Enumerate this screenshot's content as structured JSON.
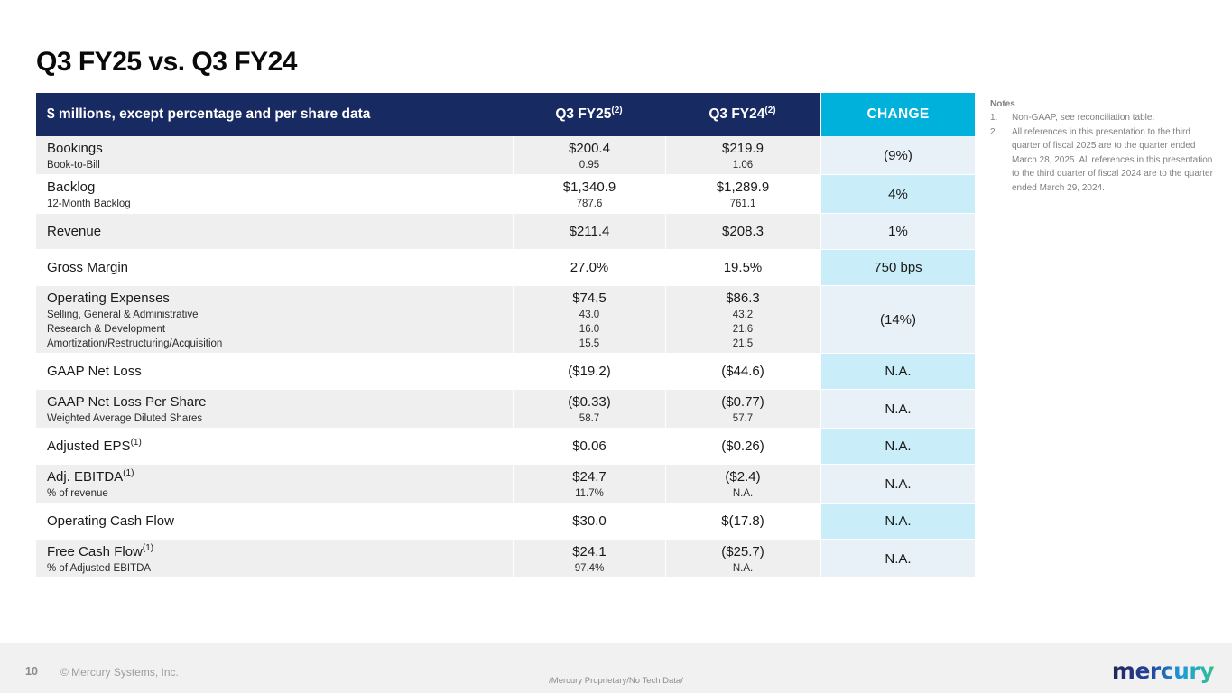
{
  "slide": {
    "title": "Q3 FY25 vs. Q3 FY24"
  },
  "table": {
    "header": {
      "label": "$ millions, except percentage and per share data",
      "col_fy25": "Q3 FY25",
      "col_fy25_sup": "(2)",
      "col_fy24": "Q3 FY24",
      "col_fy24_sup": "(2)",
      "col_change": "CHANGE"
    },
    "rows": [
      {
        "label": "Bookings",
        "sup": "",
        "subs": [
          "Book-to-Bill"
        ],
        "fy25": "$200.4",
        "fy25_subs": [
          "0.95"
        ],
        "fy24": "$219.9",
        "fy24_subs": [
          "1.06"
        ],
        "change": "(9%)",
        "shade": "gray",
        "change_shade": "blue"
      },
      {
        "label": "Backlog",
        "sup": "",
        "subs": [
          "12-Month Backlog"
        ],
        "fy25": "$1,340.9",
        "fy25_subs": [
          "787.6"
        ],
        "fy24": "$1,289.9",
        "fy24_subs": [
          "761.1"
        ],
        "change": "4%",
        "shade": "white",
        "change_shade": "cyan"
      },
      {
        "label": "Revenue",
        "sup": "",
        "subs": [],
        "fy25": "$211.4",
        "fy25_subs": [],
        "fy24": "$208.3",
        "fy24_subs": [],
        "change": "1%",
        "shade": "gray",
        "change_shade": "blue"
      },
      {
        "label": "Gross Margin",
        "sup": "",
        "subs": [],
        "fy25": "27.0%",
        "fy25_subs": [],
        "fy24": "19.5%",
        "fy24_subs": [],
        "change": "750 bps",
        "shade": "white",
        "change_shade": "cyan"
      },
      {
        "label": "Operating Expenses",
        "sup": "",
        "subs": [
          "Selling, General & Administrative",
          "Research & Development",
          "Amortization/Restructuring/Acquisition"
        ],
        "fy25": "$74.5",
        "fy25_subs": [
          "43.0",
          "16.0",
          "15.5"
        ],
        "fy24": "$86.3",
        "fy24_subs": [
          "43.2",
          "21.6",
          "21.5"
        ],
        "change": "(14%)",
        "shade": "gray",
        "change_shade": "blue"
      },
      {
        "label": "GAAP Net Loss",
        "sup": "",
        "subs": [],
        "fy25": "($19.2)",
        "fy25_subs": [],
        "fy24": "($44.6)",
        "fy24_subs": [],
        "change": "N.A.",
        "shade": "white",
        "change_shade": "cyan"
      },
      {
        "label": "GAAP Net Loss Per Share",
        "sup": "",
        "subs": [
          "Weighted Average Diluted Shares"
        ],
        "fy25": "($0.33)",
        "fy25_subs": [
          "58.7"
        ],
        "fy24": "($0.77)",
        "fy24_subs": [
          "57.7"
        ],
        "change": "N.A.",
        "shade": "gray",
        "change_shade": "blue"
      },
      {
        "label": "Adjusted EPS",
        "sup": "(1)",
        "subs": [],
        "fy25": "$0.06",
        "fy25_subs": [],
        "fy24": "($0.26)",
        "fy24_subs": [],
        "change": "N.A.",
        "shade": "white",
        "change_shade": "cyan"
      },
      {
        "label": "Adj. EBITDA",
        "sup": "(1)",
        "subs": [
          "% of revenue"
        ],
        "fy25": "$24.7",
        "fy25_subs": [
          "11.7%"
        ],
        "fy24": "($2.4)",
        "fy24_subs": [
          "N.A."
        ],
        "change": "N.A.",
        "shade": "gray",
        "change_shade": "blue"
      },
      {
        "label": "Operating Cash Flow",
        "sup": "",
        "subs": [],
        "fy25": "$30.0",
        "fy25_subs": [],
        "fy24": "$(17.8)",
        "fy24_subs": [],
        "change": "N.A.",
        "shade": "white",
        "change_shade": "cyan"
      },
      {
        "label": "Free Cash Flow",
        "sup": "(1)",
        "subs": [
          "% of Adjusted EBITDA"
        ],
        "fy25": "$24.1",
        "fy25_subs": [
          "97.4%"
        ],
        "fy24": "($25.7)",
        "fy24_subs": [
          "N.A."
        ],
        "change": "N.A.",
        "shade": "gray",
        "change_shade": "blue"
      }
    ]
  },
  "notes": {
    "title": "Notes",
    "items": [
      {
        "num": "1.",
        "text": "Non-GAAP, see reconciliation table."
      },
      {
        "num": "2.",
        "text": "All references in this presentation to the third quarter of fiscal 2025 are to the quarter ended March 28, 2025. All references in this presentation to the third quarter of fiscal 2024 are to the quarter ended March 29, 2024."
      }
    ]
  },
  "footer": {
    "page_number": "10",
    "copyright": "© Mercury Systems, Inc.",
    "proprietary": "/Mercury Proprietary/No Tech Data/",
    "logo_text": "mercury"
  },
  "colors": {
    "header_navy": "#182a62",
    "header_cyan": "#00b1dc",
    "change_light_blue": "#e8f1f8",
    "change_light_cyan": "#c9eef9",
    "row_gray": "#f0efef",
    "footer_gray": "#f1f1f1"
  }
}
